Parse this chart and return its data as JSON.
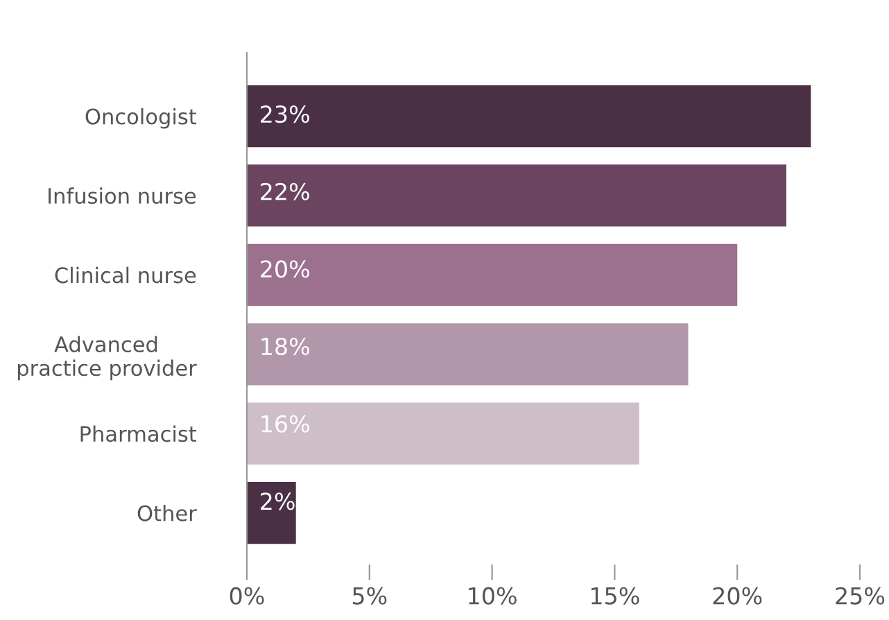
{
  "chart_data": {
    "type": "bar",
    "orientation": "horizontal",
    "categories": [
      "Oncologist",
      "Infusion nurse",
      "Clinical nurse",
      "Advanced\npractice provider",
      "Pharmacist",
      "Other"
    ],
    "values": [
      23,
      22,
      20,
      18,
      16,
      2
    ],
    "colors": [
      "#4a2f45",
      "#6b4560",
      "#9c718d",
      "#b197a9",
      "#cdbec7",
      "#4a2f45"
    ],
    "value_labels": [
      "23%",
      "22%",
      "20%",
      "18%",
      "16%",
      "2%"
    ],
    "xlim": [
      0,
      25
    ],
    "xticks": [
      {
        "value": 0,
        "label": "0%"
      },
      {
        "value": 5,
        "label": "5%"
      },
      {
        "value": 10,
        "label": "10%"
      },
      {
        "value": 15,
        "label": "15%"
      },
      {
        "value": 20,
        "label": "20%"
      },
      {
        "value": 25,
        "label": "25%"
      }
    ],
    "grid": false
  }
}
